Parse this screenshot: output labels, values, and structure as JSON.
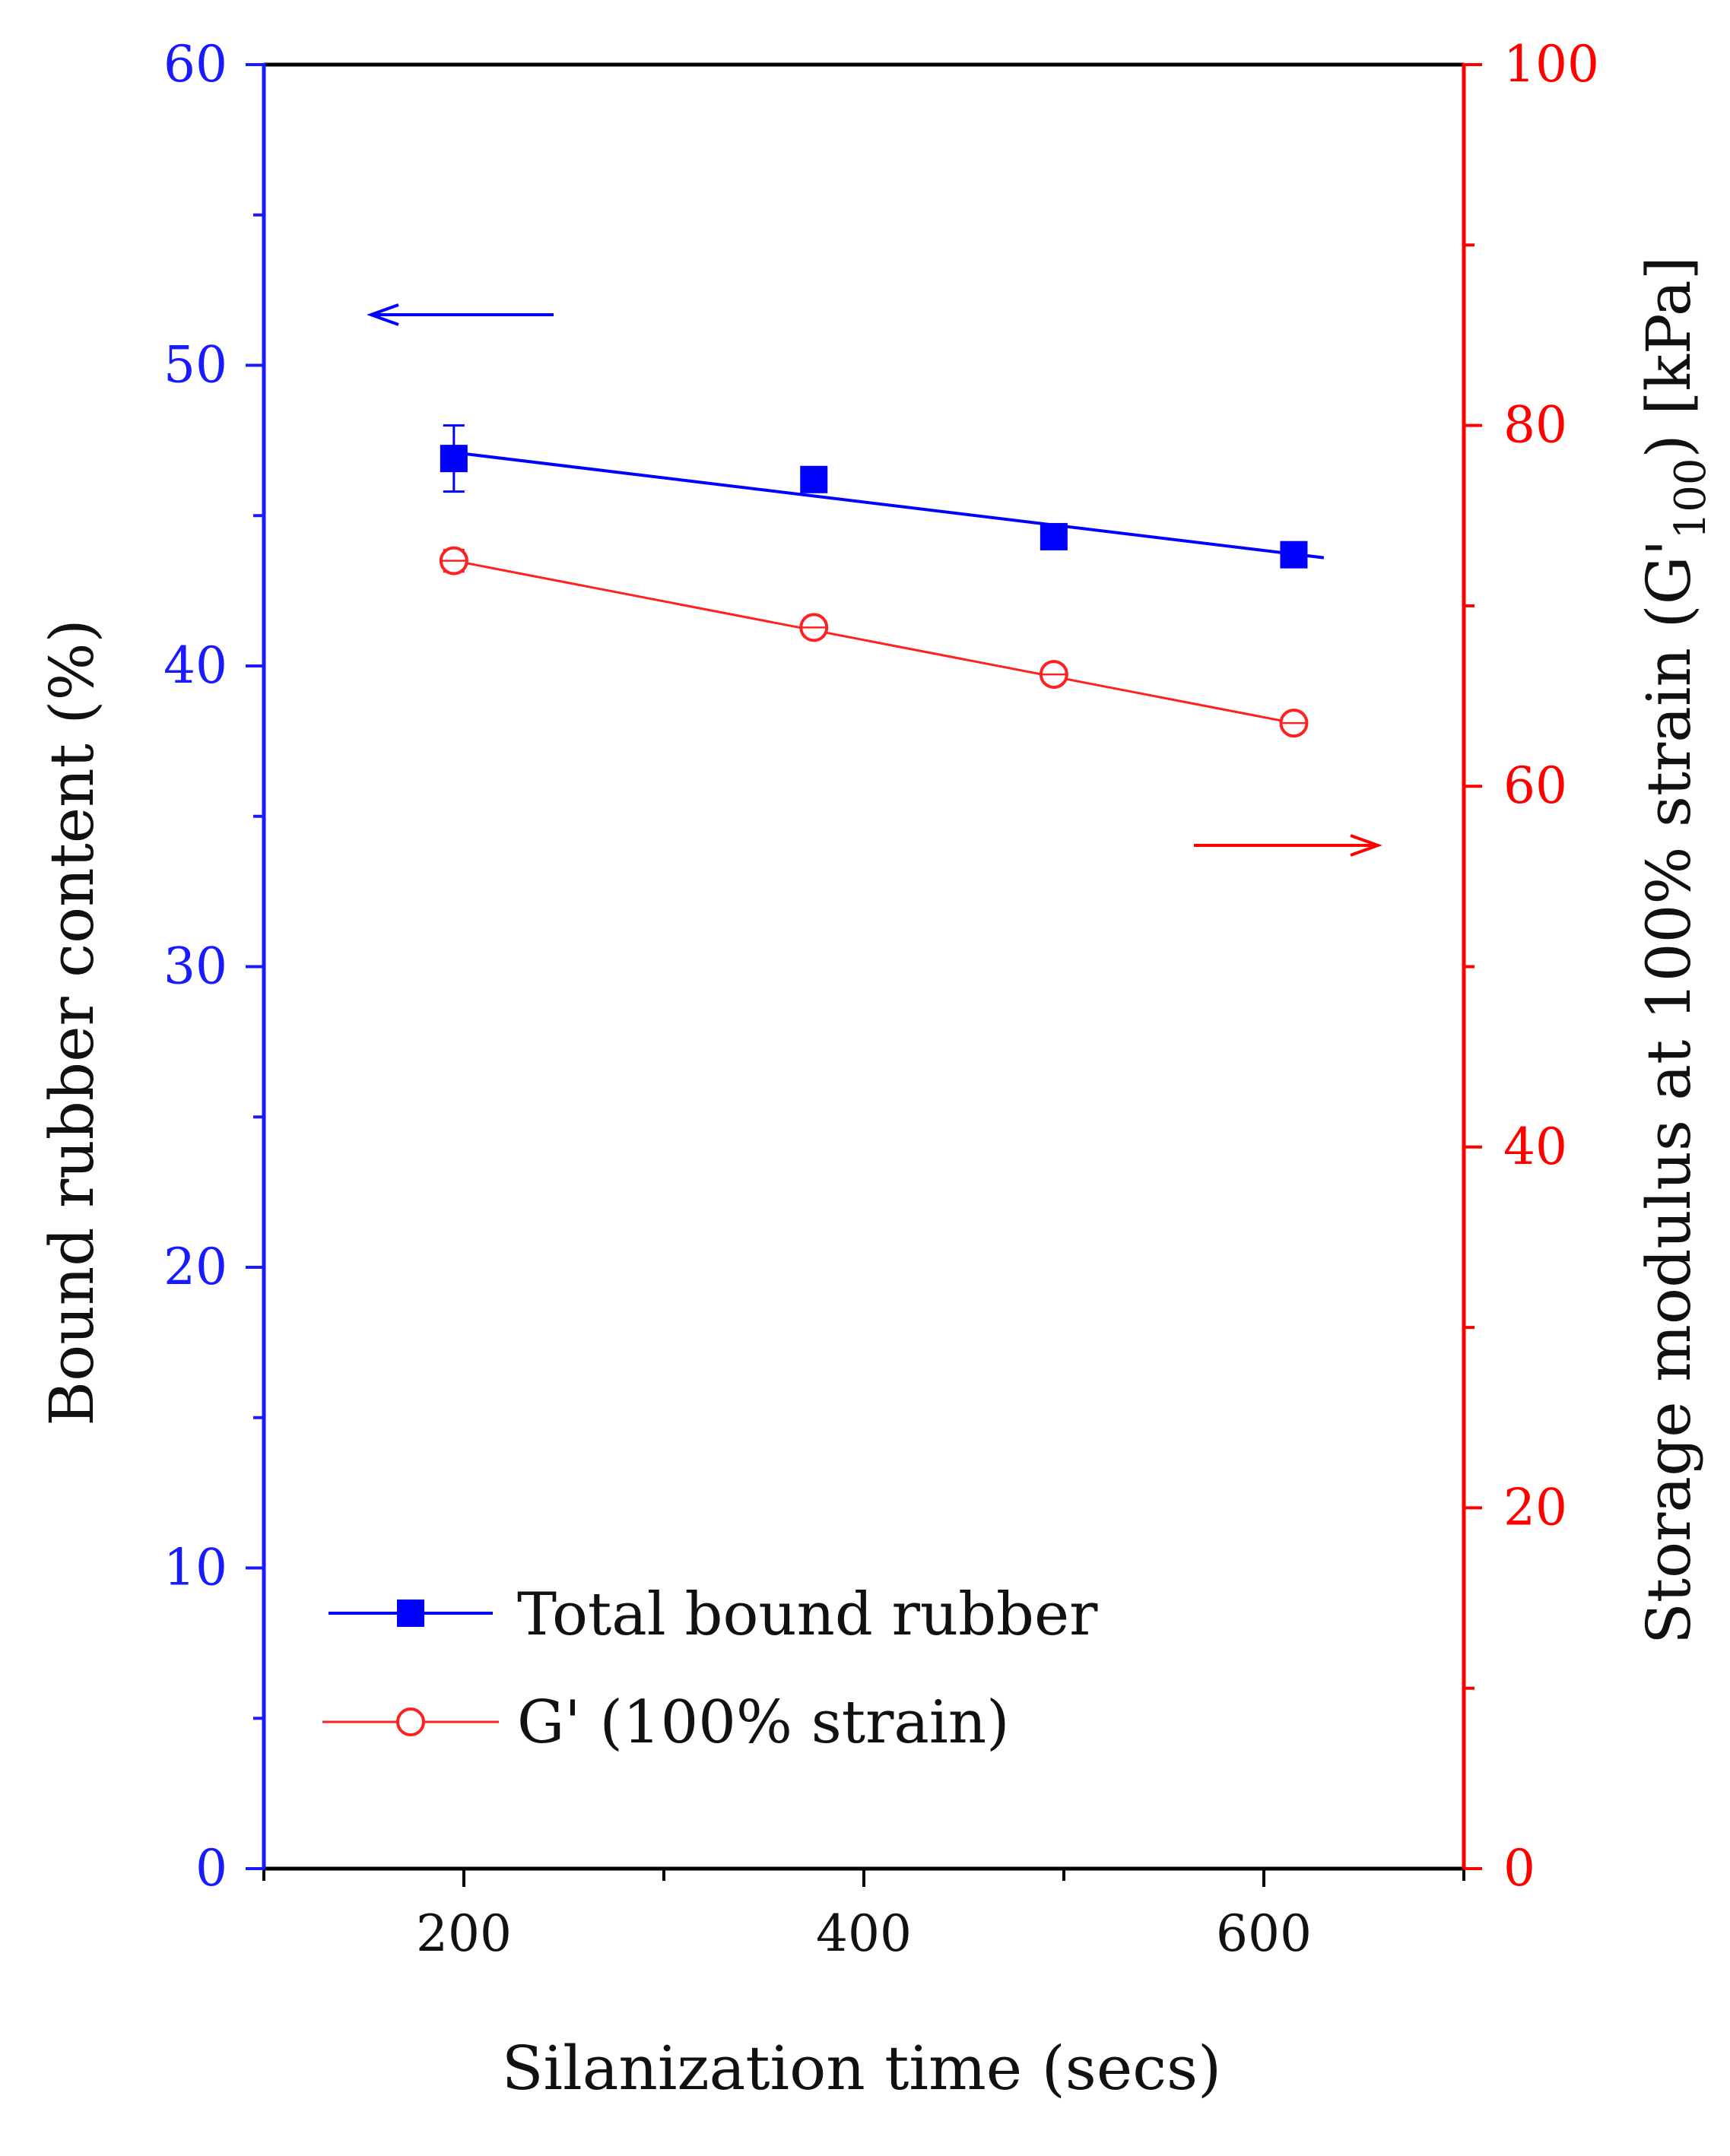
{
  "colors": {
    "left_axis": "#1a1aff",
    "right_axis": "#ff0000",
    "frame": "#000000",
    "series_bound": "#0000ff",
    "series_gprime": "#ff2020"
  },
  "chart_data": {
    "type": "line",
    "xlabel": "Silanization time (secs)",
    "ylabel_left": "Bound rubber content (%)",
    "ylabel_right_main": "Storage modulus at 100% strain (G'",
    "ylabel_right_sub": "100",
    "ylabel_right_tail": ") [kPa]",
    "xlim": [
      100,
      700
    ],
    "ylim_left": [
      0,
      60
    ],
    "ylim_right": [
      0,
      100
    ],
    "x_ticks": [
      200,
      400,
      600
    ],
    "x_tick_labels": [
      "200",
      "400",
      "600"
    ],
    "y_left_ticks": [
      0,
      10,
      20,
      30,
      40,
      50,
      60
    ],
    "y_left_tick_labels": [
      "0",
      "10",
      "20",
      "30",
      "40",
      "50",
      "60"
    ],
    "y_right_ticks": [
      0,
      20,
      40,
      60,
      80,
      100
    ],
    "y_right_tick_labels": [
      "0",
      "20",
      "40",
      "60",
      "80",
      "100"
    ],
    "legend_position": "bottom-left",
    "annotations": [
      {
        "type": "arrow",
        "direction": "left",
        "indicates": "left axis"
      },
      {
        "type": "arrow",
        "direction": "right",
        "indicates": "right axis"
      }
    ],
    "series": [
      {
        "name": "Total bound rubber",
        "axis": "left",
        "marker": "filled-square",
        "x": [
          195,
          375,
          495,
          615
        ],
        "y": [
          46.9,
          46.2,
          44.3,
          43.7
        ],
        "error": [
          1.1,
          0.4,
          0.3,
          0.4
        ],
        "fit_line": {
          "x": [
            195,
            630
          ],
          "y": [
            47.1,
            43.6
          ]
        }
      },
      {
        "name": "G' (100% strain)",
        "axis": "right",
        "marker": "open-circle",
        "x": [
          195,
          375,
          495,
          615
        ],
        "y": [
          72.5,
          68.8,
          66.2,
          63.5
        ],
        "error": [
          0.6,
          0.5,
          0.5,
          0.5
        ],
        "fit_line": {
          "x": [
            195,
            615
          ],
          "y": [
            72.5,
            63.5
          ]
        }
      }
    ]
  }
}
